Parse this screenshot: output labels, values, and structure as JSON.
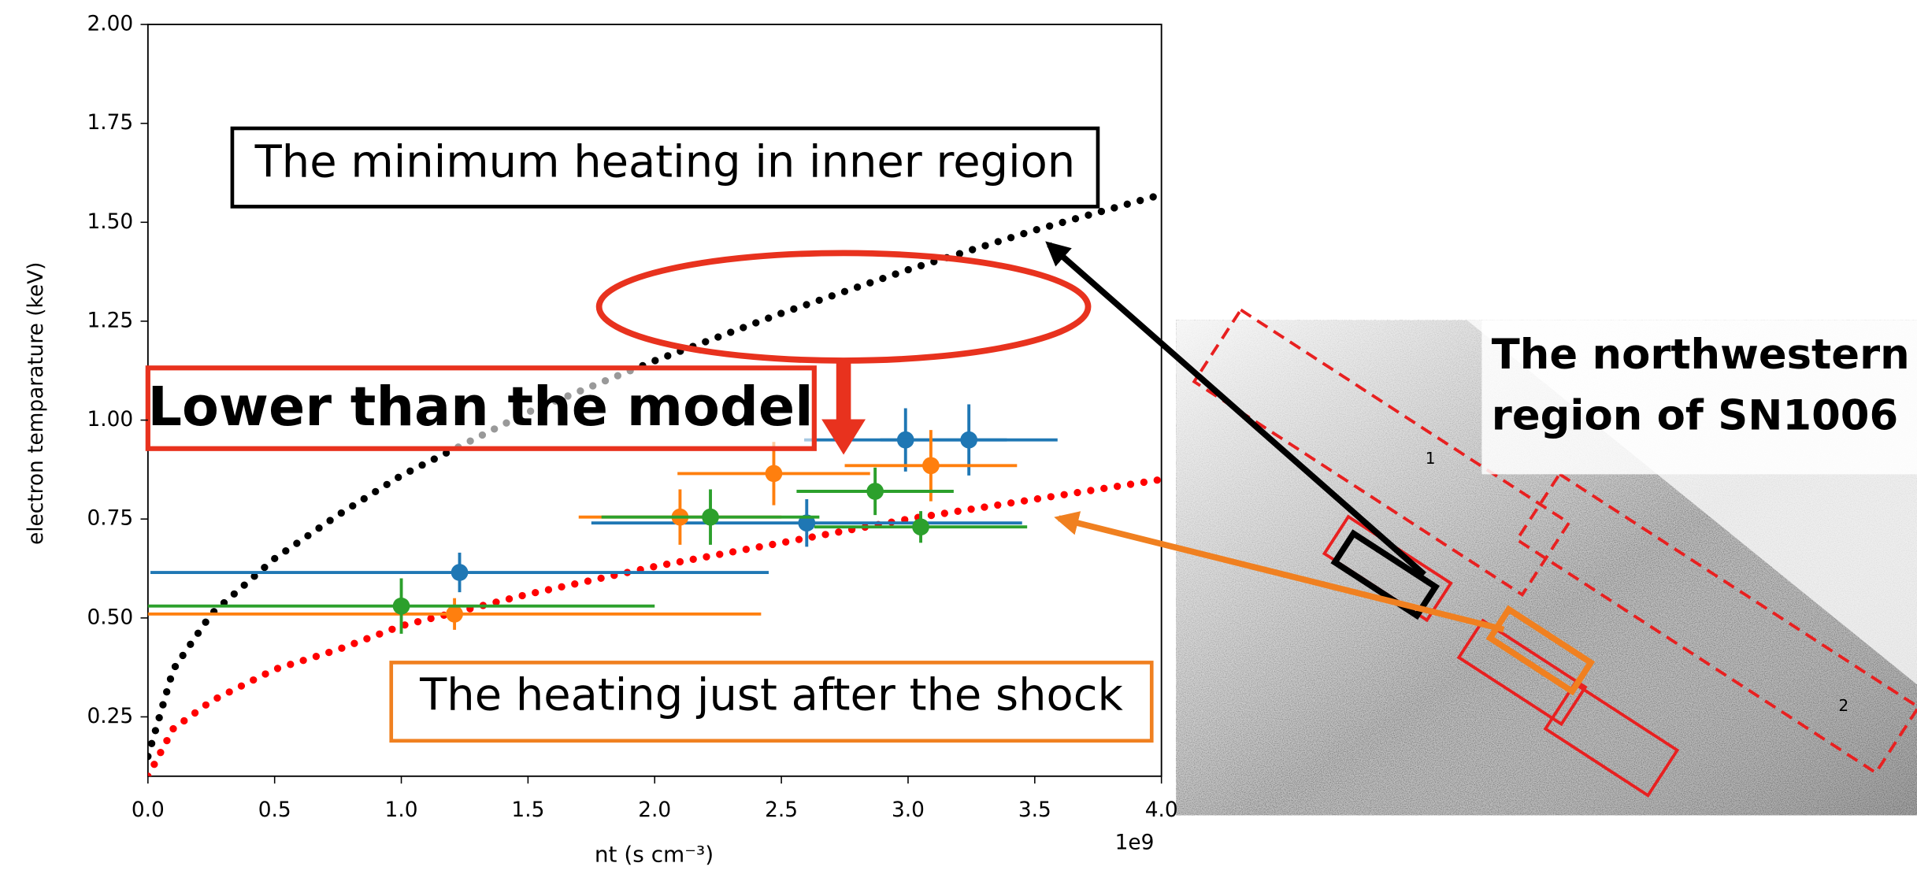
{
  "chart_data": {
    "type": "scatter",
    "xlabel": "nt (s cm⁻³)",
    "ylabel": "electron temparature (keV)",
    "x_offset_label": "1e9",
    "xlim": [
      0,
      4.0
    ],
    "ylim": [
      0.1,
      2.0
    ],
    "xticks": [
      {
        "value": 0,
        "label": "0.0"
      },
      {
        "value": 0.5,
        "label": "0.5"
      },
      {
        "value": 1,
        "label": "1.0"
      },
      {
        "value": 1.5,
        "label": "1.5"
      },
      {
        "value": 2,
        "label": "2.0"
      },
      {
        "value": 2.5,
        "label": "2.5"
      },
      {
        "value": 3,
        "label": "3.0"
      },
      {
        "value": 3.5,
        "label": "3.5"
      },
      {
        "value": 4,
        "label": "4.0"
      }
    ],
    "yticks": [
      {
        "value": 0.25,
        "label": "0.25"
      },
      {
        "value": 0.5,
        "label": "0.50"
      },
      {
        "value": 0.75,
        "label": "0.75"
      },
      {
        "value": 1,
        "label": "1.00"
      },
      {
        "value": 1.25,
        "label": "1.25"
      },
      {
        "value": 1.5,
        "label": "1.50"
      },
      {
        "value": 1.75,
        "label": "1.75"
      },
      {
        "value": 2,
        "label": "2.00"
      }
    ],
    "series": [
      {
        "color": "#1f77b4",
        "x": [
          1.23,
          2.6,
          2.99,
          3.24
        ],
        "values": [
          0.615,
          0.74,
          0.95,
          0.95
        ],
        "xerr": [
          1.22,
          0.85,
          0.4,
          0.35
        ],
        "yerr": [
          0.05,
          0.06,
          0.08,
          0.09
        ]
      },
      {
        "color": "#ff7f0e",
        "x": [
          1.21,
          2.1,
          2.47,
          3.09
        ],
        "values": [
          0.51,
          0.755,
          0.865,
          0.885
        ],
        "xerr": [
          1.21,
          0.4,
          0.38,
          0.34
        ],
        "yerr": [
          0.04,
          0.07,
          0.08,
          0.09
        ]
      },
      {
        "color": "#2ca02c",
        "x": [
          1.0,
          2.22,
          2.87,
          3.05
        ],
        "values": [
          0.53,
          0.755,
          0.82,
          0.73
        ],
        "xerr": [
          1.0,
          0.43,
          0.31,
          0.42
        ],
        "yerr": [
          0.07,
          0.07,
          0.06,
          0.04
        ]
      }
    ],
    "model_curves": [
      {
        "color": "#000000",
        "x": [
          0,
          0.1,
          0.25,
          0.5,
          0.75,
          1,
          1.5,
          2,
          2.5,
          3,
          3.5,
          4
        ],
        "values": [
          0.15,
          0.37,
          0.51,
          0.65,
          0.76,
          0.86,
          1.02,
          1.15,
          1.27,
          1.38,
          1.48,
          1.57
        ]
      },
      {
        "color": "#ff0000",
        "x": [
          0,
          0.1,
          0.25,
          0.5,
          0.75,
          1,
          1.5,
          2,
          2.5,
          3,
          3.5,
          4
        ],
        "values": [
          0.1,
          0.22,
          0.29,
          0.37,
          0.42,
          0.48,
          0.56,
          0.63,
          0.69,
          0.75,
          0.8,
          0.85
        ]
      }
    ],
    "annotations": {
      "inner_region": "The minimum heating in inner region",
      "lower": "Lower than the model",
      "shock": "The heating just after the shock"
    }
  },
  "image": {
    "caption": [
      "The northwestern",
      "region of SN1006"
    ],
    "region_labels": [
      "1",
      "2"
    ]
  }
}
